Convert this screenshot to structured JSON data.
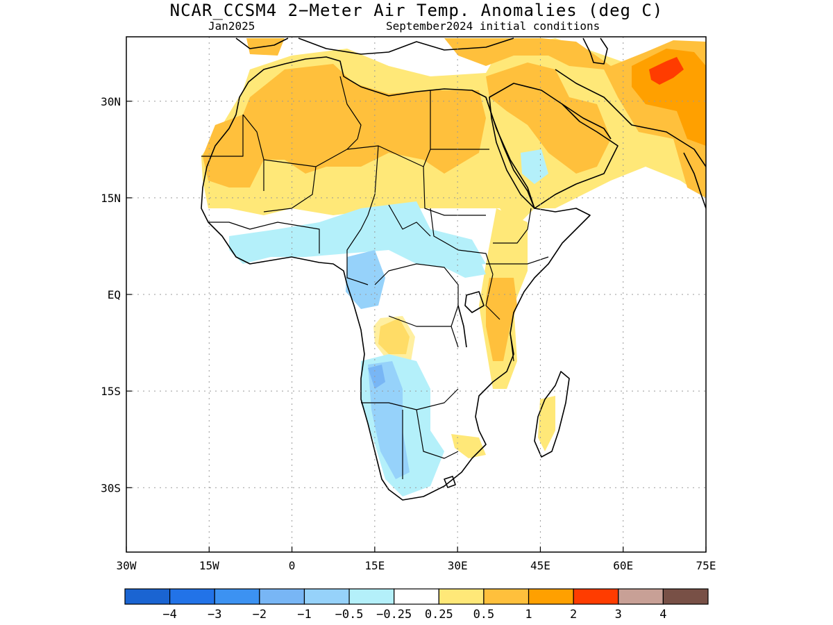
{
  "title": "NCAR_CCSM4 2−Meter Air Temp. Anomalies (deg C)",
  "subtitle_left": "Jan2025",
  "subtitle_right": "September2024 initial conditions",
  "map": {
    "lon_range": [
      -30,
      75
    ],
    "lat_range": [
      -40,
      40
    ],
    "lon_ticks": [
      {
        "value": -30,
        "label": "30W"
      },
      {
        "value": -15,
        "label": "15W"
      },
      {
        "value": 0,
        "label": "0"
      },
      {
        "value": 15,
        "label": "15E"
      },
      {
        "value": 30,
        "label": "30E"
      },
      {
        "value": 45,
        "label": "45E"
      },
      {
        "value": 60,
        "label": "60E"
      },
      {
        "value": 75,
        "label": "75E"
      }
    ],
    "lat_ticks": [
      {
        "value": 30,
        "label": "30N"
      },
      {
        "value": 15,
        "label": "15N"
      },
      {
        "value": 0,
        "label": "EQ"
      },
      {
        "value": -15,
        "label": "15S"
      },
      {
        "value": -30,
        "label": "30S"
      }
    ],
    "grid": "dotted"
  },
  "colorbar": {
    "colors": [
      "#1a64d2",
      "#2273e8",
      "#3c92f2",
      "#78b6f5",
      "#96d2fa",
      "#b4f0fa",
      "#ffffff",
      "#ffe878",
      "#ffc03c",
      "#ffa000",
      "#ff3c00",
      "#c8a096",
      "#785046"
    ],
    "labels": [
      "−4",
      "−3",
      "−2",
      "−1",
      "−0.5",
      "−0.25",
      "0.25",
      "0.5",
      "1",
      "2",
      "3",
      "4"
    ]
  },
  "colors": {
    "warm_0_5": "#ffe878",
    "warm_1": "#ffc03c",
    "warm_2": "#ffa000",
    "warm_3": "#ff3c00",
    "cool_0_25": "#b4f0fa",
    "cool_0_5": "#96d2fa",
    "cool_1": "#78b6f5"
  }
}
